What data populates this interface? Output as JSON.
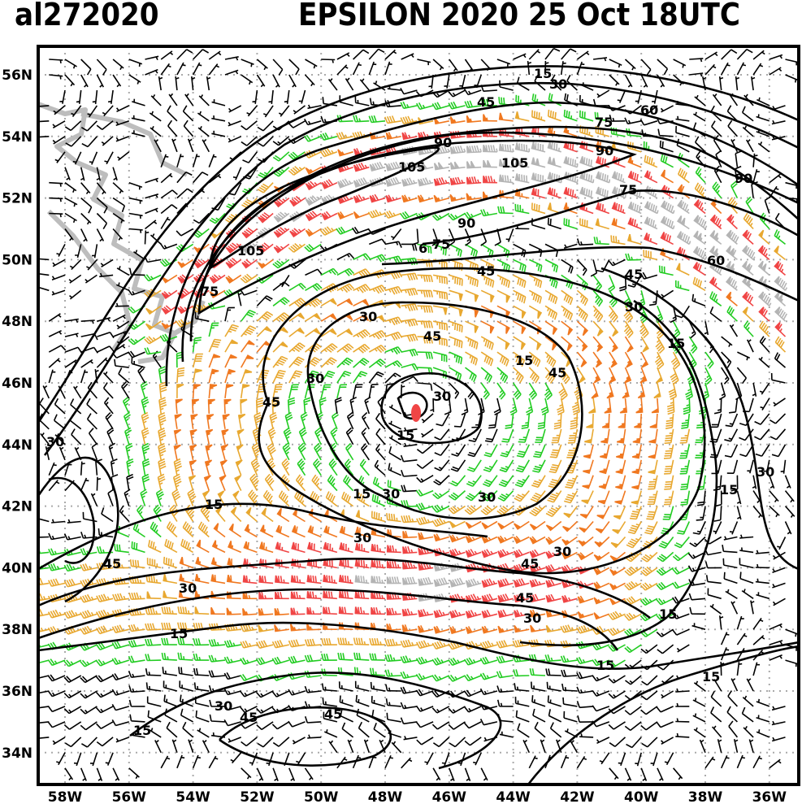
{
  "header": {
    "storm_id": "al272020",
    "title": "EPSILON 2020 25 Oct 18UTC"
  },
  "axes": {
    "latitude_labels": [
      "56N",
      "54N",
      "52N",
      "50N",
      "48N",
      "46N",
      "44N",
      "42N",
      "40N",
      "38N",
      "36N",
      "34N"
    ],
    "longitude_labels": [
      "58W",
      "56W",
      "54W",
      "52W",
      "50W",
      "48W",
      "46W",
      "44W",
      "42W",
      "40W",
      "38W",
      "36W"
    ],
    "lat_range": [
      33,
      57
    ],
    "lon_range": [
      -59,
      -35
    ]
  },
  "isotach_levels_kt": [
    15,
    30,
    45,
    60,
    75,
    90,
    105
  ],
  "contour_labels": [
    "15",
    "30",
    "45",
    "60",
    "75",
    "90",
    "90",
    "105",
    "105",
    "90",
    "75",
    "90",
    "75",
    "6",
    "45",
    "60",
    "105",
    "75",
    "45",
    "30",
    "30",
    "45",
    "15",
    "15",
    "45",
    "30",
    "30",
    "45",
    "15",
    "30",
    "30",
    "15",
    "15",
    "15",
    "30",
    "30",
    "30",
    "30",
    "45",
    "45",
    "30",
    "45",
    "30",
    "15",
    "15",
    "15",
    "15",
    "30",
    "45",
    "45",
    "15"
  ],
  "storm_center": {
    "lat": 44.7,
    "lon": -47.0
  },
  "barb_colors": {
    "calm": "#000000",
    "tropical_storm_low": "#22cc22",
    "tropical_storm_high": "#e8a830",
    "strong": "#f07820",
    "hurricane": "#f04545",
    "extreme": "#b4b4b4"
  }
}
